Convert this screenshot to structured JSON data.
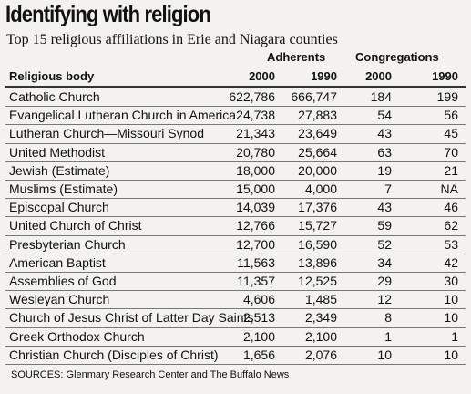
{
  "title": "Identifying with religion",
  "subtitle": "Top 15 religious affiliations in Erie and Niagara counties",
  "table": {
    "group_headers": [
      "Adherents",
      "Congregations"
    ],
    "columns": [
      "Religious body",
      "2000",
      "1990",
      "2000",
      "1990"
    ],
    "rows": [
      [
        "Catholic Church",
        "622,786",
        "666,747",
        "184",
        "199"
      ],
      [
        "Evangelical Lutheran Church in America",
        "24,738",
        "27,883",
        "54",
        "56"
      ],
      [
        "Lutheran Church—Missouri Synod",
        "21,343",
        "23,649",
        "43",
        "45"
      ],
      [
        "United Methodist",
        "20,780",
        "25,664",
        "63",
        "70"
      ],
      [
        "Jewish (Estimate)",
        "18,000",
        "20,000",
        "19",
        "21"
      ],
      [
        "Muslims (Estimate)",
        "15,000",
        "4,000",
        "7",
        "NA"
      ],
      [
        "Episcopal Church",
        "14,039",
        "17,376",
        "43",
        "46"
      ],
      [
        "United Church of Christ",
        "12,766",
        "15,727",
        "59",
        "62"
      ],
      [
        "Presbyterian Church",
        "12,700",
        "16,590",
        "52",
        "53"
      ],
      [
        "American Baptist",
        "11,563",
        "13,896",
        "34",
        "42"
      ],
      [
        "Assemblies of God",
        "11,357",
        "12,525",
        "29",
        "30"
      ],
      [
        "Wesleyan Church",
        "4,606",
        "1,485",
        "12",
        "10"
      ],
      [
        "Church of Jesus Christ of Latter Day Saints",
        "2,513",
        "2,349",
        "8",
        "10"
      ],
      [
        "Greek Orthodox Church",
        "2,100",
        "2,100",
        "1",
        "1"
      ],
      [
        "Christian Church (Disciples of Christ)",
        "1,656",
        "2,076",
        "10",
        "10"
      ]
    ]
  },
  "source": "SOURCES: Glenmary Research Center and The Buffalo News"
}
